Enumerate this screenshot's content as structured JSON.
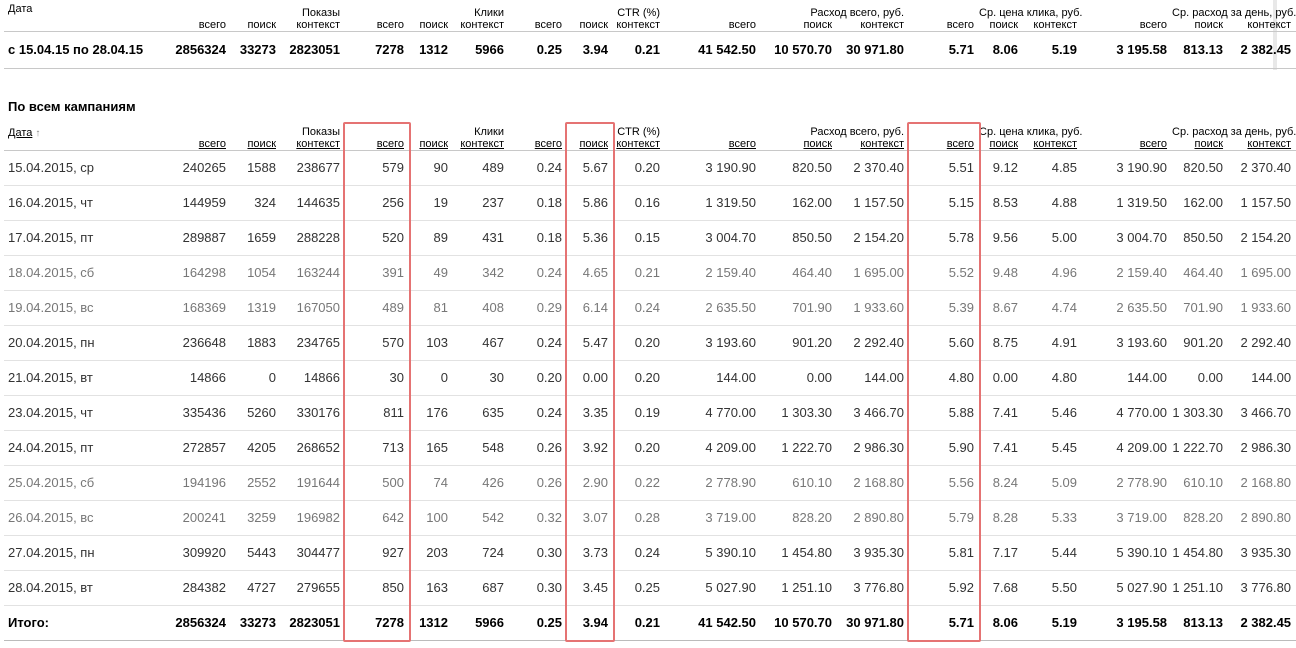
{
  "summary": {
    "headers": {
      "date": "Дата",
      "impressions_group": "Показы",
      "clicks_group": "Клики",
      "ctr_group": "CTR (%)",
      "spend_group": "Расход всего, руб.",
      "cpc_group": "Ср. цена клика, руб.",
      "daily_group": "Ср. расход за день, руб.",
      "total": "всего",
      "search": "поиск",
      "context": "контекст"
    },
    "row": [
      "с 15.04.15 по 28.04.15",
      "2856324",
      "33273",
      "2823051",
      "7278",
      "1312",
      "5966",
      "0.25",
      "3.94",
      "0.21",
      "41 542.50",
      "10 570.70",
      "30 971.80",
      "5.71",
      "8.06",
      "5.19",
      "3 195.58",
      "813.13",
      "2 382.45"
    ]
  },
  "section_title": "По всем кампаниям",
  "detail": {
    "date_sort_label": "Дата",
    "sort_arrow": "↑",
    "rows": [
      {
        "weekend": false,
        "cells": [
          "15.04.2015, ср",
          "240265",
          "1588",
          "238677",
          "579",
          "90",
          "489",
          "0.24",
          "5.67",
          "0.20",
          "3 190.90",
          "820.50",
          "2 370.40",
          "5.51",
          "9.12",
          "4.85",
          "3 190.90",
          "820.50",
          "2 370.40"
        ]
      },
      {
        "weekend": false,
        "cells": [
          "16.04.2015, чт",
          "144959",
          "324",
          "144635",
          "256",
          "19",
          "237",
          "0.18",
          "5.86",
          "0.16",
          "1 319.50",
          "162.00",
          "1 157.50",
          "5.15",
          "8.53",
          "4.88",
          "1 319.50",
          "162.00",
          "1 157.50"
        ]
      },
      {
        "weekend": false,
        "cells": [
          "17.04.2015, пт",
          "289887",
          "1659",
          "288228",
          "520",
          "89",
          "431",
          "0.18",
          "5.36",
          "0.15",
          "3 004.70",
          "850.50",
          "2 154.20",
          "5.78",
          "9.56",
          "5.00",
          "3 004.70",
          "850.50",
          "2 154.20"
        ]
      },
      {
        "weekend": true,
        "cells": [
          "18.04.2015, сб",
          "164298",
          "1054",
          "163244",
          "391",
          "49",
          "342",
          "0.24",
          "4.65",
          "0.21",
          "2 159.40",
          "464.40",
          "1 695.00",
          "5.52",
          "9.48",
          "4.96",
          "2 159.40",
          "464.40",
          "1 695.00"
        ]
      },
      {
        "weekend": true,
        "cells": [
          "19.04.2015, вс",
          "168369",
          "1319",
          "167050",
          "489",
          "81",
          "408",
          "0.29",
          "6.14",
          "0.24",
          "2 635.50",
          "701.90",
          "1 933.60",
          "5.39",
          "8.67",
          "4.74",
          "2 635.50",
          "701.90",
          "1 933.60"
        ]
      },
      {
        "weekend": false,
        "cells": [
          "20.04.2015, пн",
          "236648",
          "1883",
          "234765",
          "570",
          "103",
          "467",
          "0.24",
          "5.47",
          "0.20",
          "3 193.60",
          "901.20",
          "2 292.40",
          "5.60",
          "8.75",
          "4.91",
          "3 193.60",
          "901.20",
          "2 292.40"
        ]
      },
      {
        "weekend": false,
        "cells": [
          "21.04.2015, вт",
          "14866",
          "0",
          "14866",
          "30",
          "0",
          "30",
          "0.20",
          "0.00",
          "0.20",
          "144.00",
          "0.00",
          "144.00",
          "4.80",
          "0.00",
          "4.80",
          "144.00",
          "0.00",
          "144.00"
        ]
      },
      {
        "weekend": false,
        "cells": [
          "23.04.2015, чт",
          "335436",
          "5260",
          "330176",
          "811",
          "176",
          "635",
          "0.24",
          "3.35",
          "0.19",
          "4 770.00",
          "1 303.30",
          "3 466.70",
          "5.88",
          "7.41",
          "5.46",
          "4 770.00",
          "1 303.30",
          "3 466.70"
        ]
      },
      {
        "weekend": false,
        "cells": [
          "24.04.2015, пт",
          "272857",
          "4205",
          "268652",
          "713",
          "165",
          "548",
          "0.26",
          "3.92",
          "0.20",
          "4 209.00",
          "1 222.70",
          "2 986.30",
          "5.90",
          "7.41",
          "5.45",
          "4 209.00",
          "1 222.70",
          "2 986.30"
        ]
      },
      {
        "weekend": true,
        "cells": [
          "25.04.2015, сб",
          "194196",
          "2552",
          "191644",
          "500",
          "74",
          "426",
          "0.26",
          "2.90",
          "0.22",
          "2 778.90",
          "610.10",
          "2 168.80",
          "5.56",
          "8.24",
          "5.09",
          "2 778.90",
          "610.10",
          "2 168.80"
        ]
      },
      {
        "weekend": true,
        "cells": [
          "26.04.2015, вс",
          "200241",
          "3259",
          "196982",
          "642",
          "100",
          "542",
          "0.32",
          "3.07",
          "0.28",
          "3 719.00",
          "828.20",
          "2 890.80",
          "5.79",
          "8.28",
          "5.33",
          "3 719.00",
          "828.20",
          "2 890.80"
        ]
      },
      {
        "weekend": false,
        "cells": [
          "27.04.2015, пн",
          "309920",
          "5443",
          "304477",
          "927",
          "203",
          "724",
          "0.30",
          "3.73",
          "0.24",
          "5 390.10",
          "1 454.80",
          "3 935.30",
          "5.81",
          "7.17",
          "5.44",
          "5 390.10",
          "1 454.80",
          "3 935.30"
        ]
      },
      {
        "weekend": false,
        "cells": [
          "28.04.2015, вт",
          "284382",
          "4727",
          "279655",
          "850",
          "163",
          "687",
          "0.30",
          "3.45",
          "0.25",
          "5 027.90",
          "1 251.10",
          "3 776.80",
          "5.92",
          "7.68",
          "5.50",
          "5 027.90",
          "1 251.10",
          "3 776.80"
        ]
      }
    ],
    "total": [
      "Итого:",
      "2856324",
      "33273",
      "2823051",
      "7278",
      "1312",
      "5966",
      "0.25",
      "3.94",
      "0.21",
      "41 542.50",
      "10 570.70",
      "30 971.80",
      "5.71",
      "8.06",
      "5.19",
      "3 195.58",
      "813.13",
      "2 382.45"
    ]
  },
  "highlight_color": "#e57373"
}
